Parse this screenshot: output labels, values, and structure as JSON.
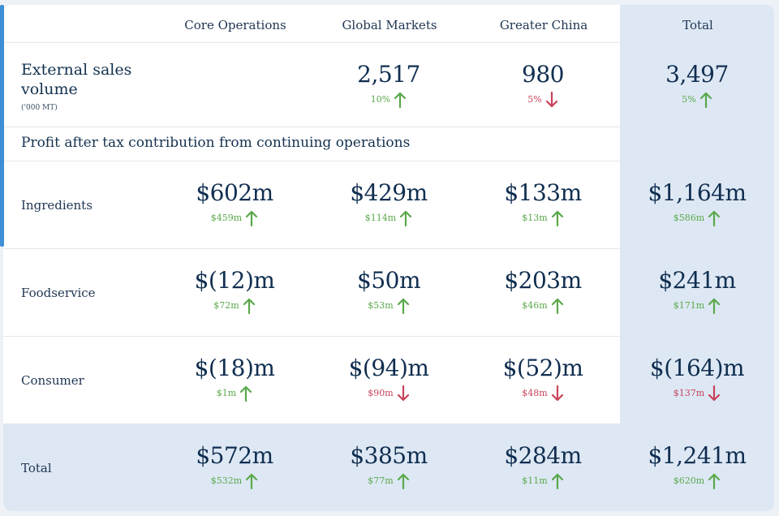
{
  "columns": [
    "Core Operations",
    "Global Markets",
    "Greater China",
    "Total"
  ],
  "sales": {
    "label": "External sales volume",
    "unit": "('000 MT)",
    "global": {
      "value": "2,517",
      "change": "10%",
      "dir": "up"
    },
    "china": {
      "value": "980",
      "change": "5%",
      "dir": "down"
    },
    "total": {
      "value": "3,497",
      "change": "5%",
      "dir": "up"
    }
  },
  "section_title": "Profit after tax contribution from continuing operations",
  "rows": [
    {
      "label": "Ingredients",
      "cells": [
        {
          "value": "$602m",
          "change": "$459m",
          "dir": "up"
        },
        {
          "value": "$429m",
          "change": "$114m",
          "dir": "up"
        },
        {
          "value": "$133m",
          "change": "$13m",
          "dir": "up"
        },
        {
          "value": "$1,164m",
          "change": "$586m",
          "dir": "up"
        }
      ]
    },
    {
      "label": "Foodservice",
      "cells": [
        {
          "value": "$(12)m",
          "change": "$72m",
          "dir": "up"
        },
        {
          "value": "$50m",
          "change": "$53m",
          "dir": "up"
        },
        {
          "value": "$203m",
          "change": "$46m",
          "dir": "up"
        },
        {
          "value": "$241m",
          "change": "$171m",
          "dir": "up"
        }
      ]
    },
    {
      "label": "Consumer",
      "cells": [
        {
          "value": "$(18)m",
          "change": "$1m",
          "dir": "up"
        },
        {
          "value": "$(94)m",
          "change": "$90m",
          "dir": "down"
        },
        {
          "value": "$(52)m",
          "change": "$48m",
          "dir": "down"
        },
        {
          "value": "$(164)m",
          "change": "$137m",
          "dir": "down"
        }
      ]
    },
    {
      "label": "Total",
      "cells": [
        {
          "value": "$572m",
          "change": "$532m",
          "dir": "up"
        },
        {
          "value": "$385m",
          "change": "$77m",
          "dir": "up"
        },
        {
          "value": "$284m",
          "change": "$11m",
          "dir": "up"
        },
        {
          "value": "$1,241m",
          "change": "$620m",
          "dir": "up"
        }
      ]
    }
  ],
  "colors": {
    "up": "#5aa84a",
    "down": "#c8435a",
    "accent": "#3d8fd6",
    "total_bg": "#dde8f4"
  }
}
